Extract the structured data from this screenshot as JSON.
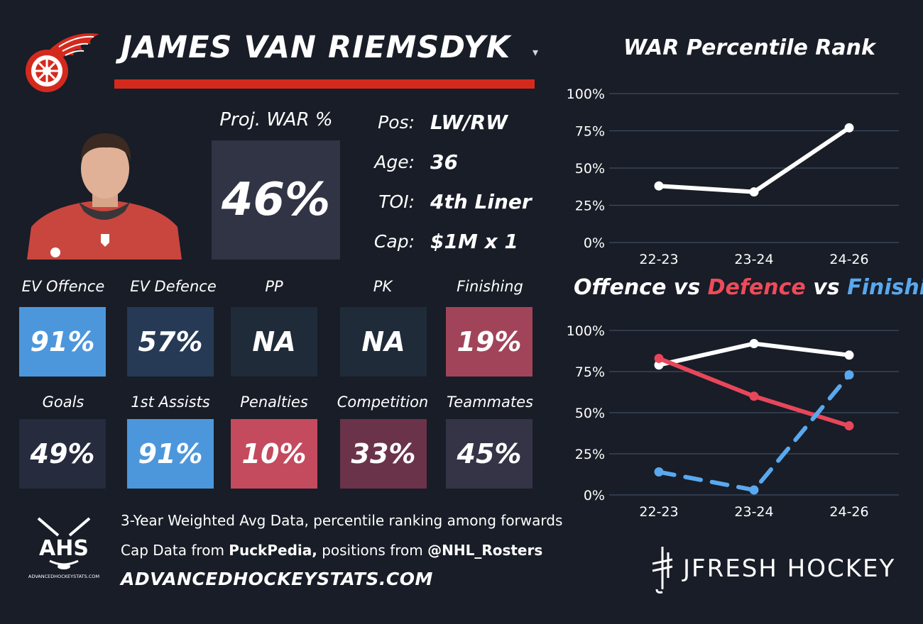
{
  "player": {
    "name": "JAMES VAN RIEMSDYK",
    "caret": "▾",
    "war_label": "Proj. WAR %",
    "war_value": "46%",
    "info": [
      {
        "key": "Pos:",
        "value": "LW/RW"
      },
      {
        "key": "Age:",
        "value": "36"
      },
      {
        "key": "TOI:",
        "value": "4th Liner"
      },
      {
        "key": "Cap:",
        "value": "$1M x 1"
      }
    ]
  },
  "tiles_row1": [
    {
      "label": "EV Offence",
      "value": "91%",
      "color": "#4c97dc"
    },
    {
      "label": "EV Defence",
      "value": "57%",
      "color": "#263a55"
    },
    {
      "label": "PP",
      "value": "NA",
      "color": "#1f2b38"
    },
    {
      "label": "PK",
      "value": "NA",
      "color": "#1f2b38"
    },
    {
      "label": "Finishing",
      "value": "19%",
      "color": "#a14459"
    }
  ],
  "tiles_row2": [
    {
      "label": "Goals",
      "value": "49%",
      "color": "#262b3e"
    },
    {
      "label": "1st Assists",
      "value": "91%",
      "color": "#4c97dc"
    },
    {
      "label": "Penalties",
      "value": "10%",
      "color": "#c44a5e"
    },
    {
      "label": "Competition",
      "value": "33%",
      "color": "#6a3349"
    },
    {
      "label": "Teammates",
      "value": "45%",
      "color": "#343446"
    }
  ],
  "footer": {
    "line1": "3-Year Weighted Avg Data, percentile ranking among forwards",
    "line2_a": "Cap Data from ",
    "line2_b": "PuckPedia,",
    "line2_c": " positions from ",
    "line2_d": "@NHL_Rosters",
    "site": "ADVANCEDHOCKEYSTATS.COM",
    "ahs_text": "AHS",
    "ahs_small": "ADVANCEDHOCKEYSTATS.COM",
    "brand": "JFRESH HOCKEY"
  },
  "chart_titles": {
    "war": "WAR Percentile Rank",
    "ovd_a": "Offence",
    "ovd_b": " vs ",
    "ovd_c": "Defence",
    "ovd_d": " vs ",
    "ovd_e": "Finishing"
  },
  "chart_data": [
    {
      "type": "line",
      "title": "WAR Percentile Rank",
      "categories": [
        "22-23",
        "23-24",
        "24-26"
      ],
      "ylim": [
        0,
        100
      ],
      "yticks": [
        "0%",
        "25%",
        "50%",
        "75%",
        "100%"
      ],
      "grid": true,
      "series": [
        {
          "values": [
            38,
            34,
            77
          ],
          "color": "#ffffff",
          "dash": false
        }
      ]
    },
    {
      "type": "line",
      "title": "Offence vs Defence vs Finishing",
      "categories": [
        "22-23",
        "23-24",
        "24-26"
      ],
      "ylim": [
        0,
        100
      ],
      "yticks": [
        "0%",
        "25%",
        "50%",
        "75%",
        "100%"
      ],
      "grid": true,
      "series": [
        {
          "name": "Offence",
          "values": [
            79,
            92,
            85
          ],
          "color": "#ffffff",
          "dash": false
        },
        {
          "name": "Defence",
          "values": [
            83,
            60,
            42
          ],
          "color": "#e8465a",
          "dash": false
        },
        {
          "name": "Finishing",
          "values": [
            14,
            3,
            73
          ],
          "color": "#5aa8ee",
          "dash": true
        }
      ]
    }
  ]
}
